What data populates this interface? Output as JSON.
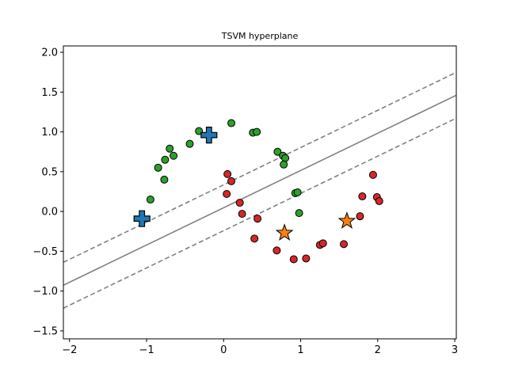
{
  "chart_data": {
    "type": "scatter",
    "title": "TSVM hyperplane",
    "xlabel": "",
    "ylabel": "",
    "xlim": [
      -2.08,
      3.02
    ],
    "ylim": [
      -1.6,
      2.08
    ],
    "xticks": [
      -2,
      -1,
      0,
      1,
      2,
      3
    ],
    "yticks": [
      -1.5,
      -1.0,
      -0.5,
      0.0,
      0.5,
      1.0,
      1.5,
      2.0
    ],
    "xtick_labels": [
      "−2",
      "−1",
      "0",
      "1",
      "2",
      "3"
    ],
    "ytick_labels": [
      "−1.5",
      "−1.0",
      "−0.5",
      "0.0",
      "0.5",
      "1.0",
      "1.5",
      "2.0"
    ],
    "grid": false,
    "hyperplane": {
      "color": "#808080",
      "decision": {
        "slope": 0.468,
        "intercept": 0.047
      },
      "margin_upper": {
        "slope": 0.468,
        "intercept": 0.335
      },
      "margin_lower": {
        "slope": 0.468,
        "intercept": -0.241
      }
    },
    "series": [
      {
        "marker": "circle",
        "color": "#2ca02c",
        "points": [
          [
            -0.95,
            0.15
          ],
          [
            -0.85,
            0.55
          ],
          [
            -0.77,
            0.4
          ],
          [
            -0.76,
            0.65
          ],
          [
            -0.7,
            0.79
          ],
          [
            -0.65,
            0.7
          ],
          [
            -0.44,
            0.85
          ],
          [
            -0.32,
            1.01
          ],
          [
            0.1,
            1.11
          ],
          [
            0.38,
            0.99
          ],
          [
            0.43,
            1.0
          ],
          [
            0.7,
            0.75
          ],
          [
            0.77,
            0.7
          ],
          [
            0.8,
            0.67
          ],
          [
            0.78,
            0.59
          ],
          [
            0.93,
            0.23
          ],
          [
            0.96,
            0.24
          ],
          [
            0.98,
            -0.02
          ]
        ]
      },
      {
        "marker": "circle",
        "color": "#d62728",
        "points": [
          [
            0.05,
            0.47
          ],
          [
            0.1,
            0.38
          ],
          [
            0.04,
            0.22
          ],
          [
            0.21,
            0.11
          ],
          [
            0.24,
            -0.03
          ],
          [
            0.44,
            -0.09
          ],
          [
            0.4,
            -0.34
          ],
          [
            0.69,
            -0.49
          ],
          [
            0.91,
            -0.6
          ],
          [
            1.07,
            -0.59
          ],
          [
            1.25,
            -0.42
          ],
          [
            1.29,
            -0.4
          ],
          [
            1.56,
            -0.41
          ],
          [
            1.77,
            -0.06
          ],
          [
            1.8,
            0.19
          ],
          [
            1.94,
            0.46
          ],
          [
            1.99,
            0.18
          ],
          [
            2.02,
            0.13
          ]
        ]
      },
      {
        "marker": "plus",
        "color": "#1f77b4",
        "points": [
          [
            -1.06,
            -0.09
          ],
          [
            -0.19,
            0.96
          ]
        ]
      },
      {
        "marker": "star",
        "color": "#ff7f0e",
        "points": [
          [
            0.79,
            -0.27
          ],
          [
            1.6,
            -0.12
          ]
        ]
      }
    ]
  }
}
